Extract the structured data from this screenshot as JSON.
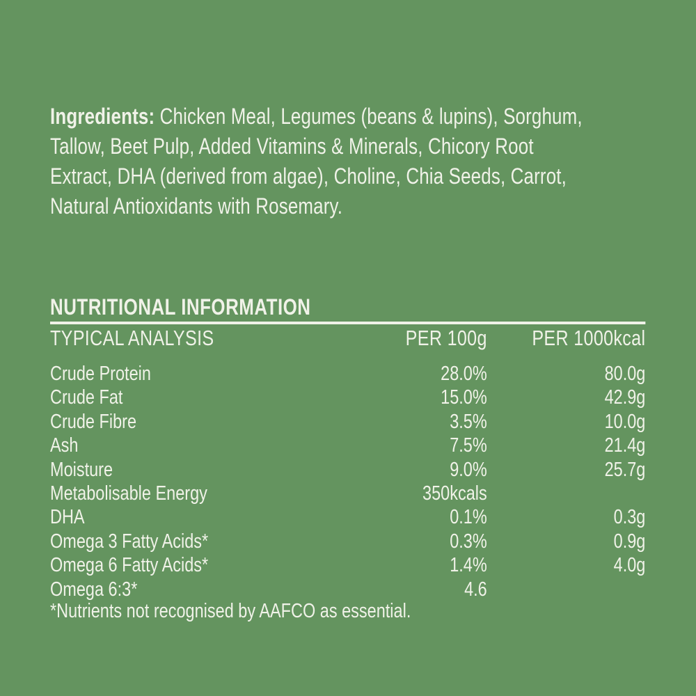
{
  "colors": {
    "background": "#64945F",
    "text": "#F0F2E8"
  },
  "ingredients": {
    "bold_label": "Ingredients:",
    "lines": [
      " Chicken Meal, Legumes (beans & lupins), Sorghum,",
      "Tallow, Beet Pulp, Added Vitamins & Minerals, Chicory Root",
      "Extract, DHA (derived from algae), Choline, Chia Seeds, Carrot,",
      "Natural Antioxidants with Rosemary."
    ]
  },
  "section_title": "NUTRITIONAL INFORMATION",
  "table": {
    "headers": {
      "analysis": "TYPICAL ANALYSIS",
      "per_100g": "PER 100g",
      "per_1000kcal": "PER 1000kcal"
    },
    "rows": [
      {
        "name": "Crude Protein",
        "per_100g": "28.0%",
        "per_1000kcal": "80.0g"
      },
      {
        "name": "Crude Fat",
        "per_100g": "15.0%",
        "per_1000kcal": "42.9g"
      },
      {
        "name": "Crude Fibre",
        "per_100g": "3.5%",
        "per_1000kcal": "10.0g"
      },
      {
        "name": "Ash",
        "per_100g": "7.5%",
        "per_1000kcal": "21.4g"
      },
      {
        "name": "Moisture",
        "per_100g": "9.0%",
        "per_1000kcal": "25.7g"
      },
      {
        "name": "Metabolisable Energy",
        "per_100g": "350kcals",
        "per_1000kcal": ""
      },
      {
        "name": "DHA",
        "per_100g": "0.1%",
        "per_1000kcal": "0.3g"
      },
      {
        "name": "Omega 3 Fatty Acids*",
        "per_100g": "0.3%",
        "per_1000kcal": "0.9g"
      },
      {
        "name": "Omega 6 Fatty Acids*",
        "per_100g": "1.4%",
        "per_1000kcal": "4.0g"
      },
      {
        "name": "Omega 6:3*",
        "per_100g": "4.6",
        "per_1000kcal": ""
      }
    ]
  },
  "footnote": "*Nutrients not recognised by AAFCO as essential."
}
